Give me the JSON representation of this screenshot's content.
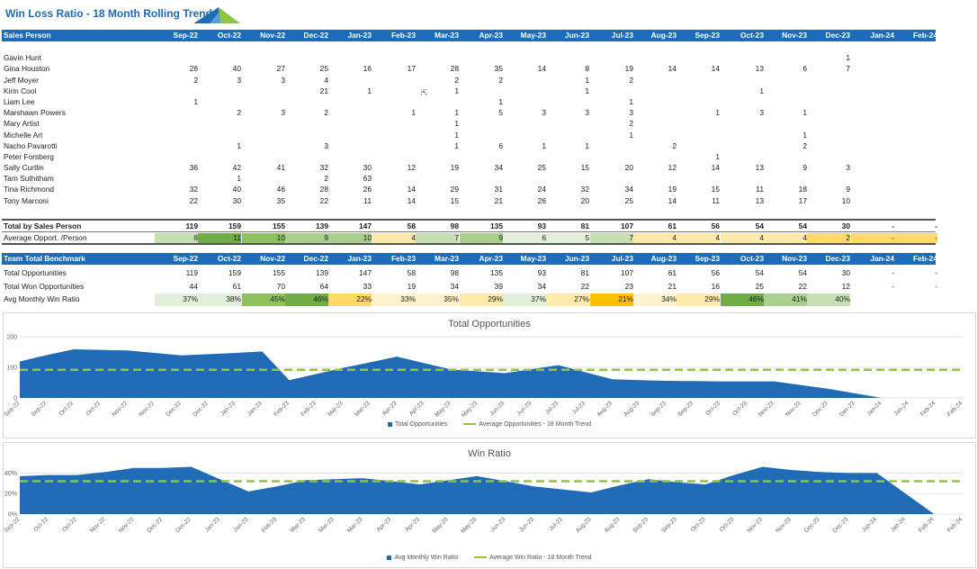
{
  "title": "Win Loss Ratio - 18 Month Rolling Trend",
  "colors": {
    "header": "#1f6bb5",
    "area": "#1f6bb5",
    "trend": "#8dc63f",
    "good": "#70ad47",
    "warn": "#ffc000"
  },
  "months": [
    "Sep-22",
    "Oct-22",
    "Nov-22",
    "Dec-22",
    "Jan-23",
    "Feb-23",
    "Mar-23",
    "Apr-23",
    "May-23",
    "Jun-23",
    "Jul-23",
    "Aug-23",
    "Sep-23",
    "Oct-23",
    "Nov-23",
    "Dec-23",
    "Jan-24",
    "Feb-24"
  ],
  "sales_table": {
    "header_label": "Sales Person",
    "rows": [
      {
        "name": "",
        "values": [
          "",
          "",
          "",
          "",
          "",
          "",
          "",
          "",
          "",
          "",
          "",
          "",
          "",
          "",
          "",
          "",
          "",
          ""
        ]
      },
      {
        "name": "Gavin Hunt",
        "values": [
          "",
          "",
          "",
          "",
          "",
          "",
          "",
          "",
          "",
          "",
          "",
          "",
          "",
          "",
          "",
          "1",
          "",
          ""
        ]
      },
      {
        "name": "Gina Houston",
        "values": [
          "26",
          "40",
          "27",
          "25",
          "16",
          "17",
          "28",
          "35",
          "14",
          "8",
          "19",
          "14",
          "14",
          "13",
          "6",
          "7",
          "",
          ""
        ]
      },
      {
        "name": "Jeff Moyer",
        "values": [
          "2",
          "3",
          "3",
          "4",
          "",
          "",
          "2",
          "2",
          "",
          "1",
          "2",
          "",
          "",
          "",
          "",
          "",
          "",
          ""
        ]
      },
      {
        "name": "Kirin Cool",
        "values": [
          "",
          "",
          "",
          "21",
          "1",
          "",
          "1",
          "",
          "",
          "1",
          "",
          "",
          "",
          "1",
          "",
          "",
          "",
          ""
        ]
      },
      {
        "name": "Liam Lee",
        "values": [
          "1",
          "",
          "",
          "",
          "",
          "",
          "",
          "1",
          "",
          "",
          "1",
          "",
          "",
          "",
          "",
          "",
          "",
          ""
        ]
      },
      {
        "name": "Marshawn Powers",
        "values": [
          "",
          "2",
          "3",
          "2",
          "",
          "1",
          "1",
          "5",
          "3",
          "3",
          "3",
          "",
          "1",
          "3",
          "1",
          "",
          "",
          ""
        ]
      },
      {
        "name": "Mary Artist",
        "values": [
          "",
          "",
          "",
          "",
          "",
          "",
          "1",
          "",
          "",
          "",
          "2",
          "",
          "",
          "",
          "",
          "",
          "",
          ""
        ]
      },
      {
        "name": "Michelle Art",
        "values": [
          "",
          "",
          "",
          "",
          "",
          "",
          "1",
          "",
          "",
          "",
          "1",
          "",
          "",
          "",
          "1",
          "",
          "",
          ""
        ]
      },
      {
        "name": "Nacho Pavarotti",
        "values": [
          "",
          "1",
          "",
          "3",
          "",
          "",
          "1",
          "6",
          "1",
          "1",
          "",
          "2",
          "",
          "",
          "2",
          "",
          "",
          ""
        ]
      },
      {
        "name": "Peter Forsberg",
        "values": [
          "",
          "",
          "",
          "",
          "",
          "",
          "",
          "",
          "",
          "",
          "",
          "",
          "1",
          "",
          "",
          "",
          "",
          ""
        ]
      },
      {
        "name": "Sally Curtlin",
        "values": [
          "36",
          "42",
          "41",
          "32",
          "30",
          "12",
          "19",
          "34",
          "25",
          "15",
          "20",
          "12",
          "14",
          "13",
          "9",
          "3",
          "",
          ""
        ]
      },
      {
        "name": "Tam Suthitham",
        "values": [
          "",
          "1",
          "",
          "2",
          "63",
          "",
          "",
          "",
          "",
          "",
          "",
          "",
          "",
          "",
          "",
          "",
          "",
          ""
        ]
      },
      {
        "name": "Tina Richmond",
        "values": [
          "32",
          "40",
          "46",
          "28",
          "26",
          "14",
          "29",
          "31",
          "24",
          "32",
          "34",
          "19",
          "15",
          "11",
          "18",
          "9",
          "",
          ""
        ]
      },
      {
        "name": "Tony Marconi",
        "values": [
          "22",
          "30",
          "35",
          "22",
          "11",
          "14",
          "15",
          "21",
          "26",
          "20",
          "25",
          "14",
          "11",
          "13",
          "17",
          "10",
          "",
          ""
        ]
      },
      {
        "name": "",
        "values": [
          "",
          "",
          "",
          "",
          "",
          "",
          "",
          "",
          "",
          "",
          "",
          "",
          "",
          "",
          "",
          "",
          "",
          ""
        ]
      }
    ],
    "total": {
      "name": "Total by Sales Person",
      "values": [
        "119",
        "159",
        "155",
        "139",
        "147",
        "58",
        "98",
        "135",
        "93",
        "81",
        "107",
        "61",
        "56",
        "54",
        "54",
        "30",
        "-",
        "-"
      ]
    },
    "average": {
      "name": "Average Opport. /Person",
      "values": [
        "8",
        "11",
        "10",
        "9",
        "10",
        "4",
        "7",
        "9",
        "6",
        "5",
        "7",
        "4",
        "4",
        "4",
        "4",
        "2",
        "-",
        "-"
      ],
      "bg": [
        "#c6e0b4",
        "#70ad47",
        "#8fc25f",
        "#a9d08e",
        "#a9d08e",
        "#fde9a9",
        "#c6e0b4",
        "#a9d08e",
        "#e2efda",
        "#e2efda",
        "#c6e0b4",
        "#fde9a9",
        "#fde9a9",
        "#fde9a9",
        "#fde9a9",
        "#ffd966",
        "#ffd966",
        "#ffd966"
      ]
    }
  },
  "benchmark_table": {
    "header_label": "Team Total Benchmark",
    "rows": [
      {
        "name": "Total Opportunities",
        "values": [
          "119",
          "159",
          "155",
          "139",
          "147",
          "58",
          "98",
          "135",
          "93",
          "81",
          "107",
          "61",
          "56",
          "54",
          "54",
          "30",
          "-",
          "-"
        ]
      },
      {
        "name": "Total Won Opportunities",
        "values": [
          "44",
          "61",
          "70",
          "64",
          "33",
          "19",
          "34",
          "39",
          "34",
          "22",
          "23",
          "21",
          "16",
          "25",
          "22",
          "12",
          "-",
          "-"
        ]
      }
    ],
    "win_ratio": {
      "name": "Avg Monthly Win Ratio",
      "values": [
        "37%",
        "38%",
        "45%",
        "46%",
        "22%",
        "33%",
        "35%",
        "29%",
        "37%",
        "27%",
        "21%",
        "34%",
        "29%",
        "46%",
        "41%",
        "40%",
        "",
        ""
      ],
      "bg": [
        "#e2efda",
        "#e2efda",
        "#8fc25f",
        "#70ad47",
        "#ffd966",
        "#fff2cc",
        "#fff2cc",
        "#fde9a9",
        "#e2efda",
        "#fde9a9",
        "#ffc000",
        "#fff2cc",
        "#fde9a9",
        "#70ad47",
        "#a9d08e",
        "#c6e0b4",
        "",
        ""
      ]
    }
  },
  "charts": {
    "opportunities": {
      "title": "Total Opportunities",
      "legend_area": "Total Opportunities",
      "legend_trend": "Average Opportunities - 18 Month Trend",
      "y_ticks": [
        "200",
        "100",
        "0"
      ]
    },
    "win": {
      "title": "Win Ratio",
      "legend_area": "Avg Monthly Win Ratio",
      "legend_trend": "Average Win Ratio - 18 Month Trend",
      "y_ticks": [
        "40%",
        "20%",
        "0%"
      ]
    }
  },
  "chart_data": [
    {
      "type": "area",
      "title": "Total Opportunities",
      "x": [
        "Sep-22",
        "Sep-22",
        "Oct-22",
        "Oct-22",
        "Nov-22",
        "Nov-22",
        "Dec-22",
        "Dec-22",
        "Jan-23",
        "Jan-23",
        "Feb-23",
        "Feb-23",
        "Mar-23",
        "Mar-23",
        "Apr-23",
        "Apr-23",
        "May-23",
        "May-23",
        "Jun-23",
        "Jun-23",
        "Jul-23",
        "Jul-23",
        "Aug-23",
        "Aug-23",
        "Sep-23",
        "Sep-23",
        "Oct-23",
        "Oct-23",
        "Nov-23",
        "Nov-23",
        "Dec-23",
        "Dec-23",
        "Jan-24",
        "Jan-24",
        "Feb-24",
        "Feb-24"
      ],
      "series": [
        {
          "name": "Total Opportunities",
          "values": [
            119,
            140,
            159,
            157,
            155,
            147,
            139,
            143,
            147,
            152,
            58,
            78,
            98,
            116,
            135,
            114,
            93,
            87,
            81,
            94,
            107,
            84,
            61,
            58,
            56,
            55,
            54,
            54,
            54,
            42,
            30,
            15,
            0,
            0,
            0,
            0
          ]
        },
        {
          "name": "Average Opportunities - 18 Month Trend",
          "values": [
            92,
            92,
            92,
            92,
            92,
            92,
            92,
            92,
            92,
            92,
            92,
            92,
            92,
            92,
            92,
            92,
            92,
            92,
            92,
            92,
            92,
            92,
            92,
            92,
            92,
            92,
            92,
            92,
            92,
            92,
            92,
            92,
            92,
            92,
            92,
            92
          ]
        }
      ],
      "ylim": [
        0,
        200
      ]
    },
    {
      "type": "area",
      "title": "Win Ratio",
      "x": [
        "Sep-22",
        "Oct-22",
        "Oct-22",
        "Nov-22",
        "Nov-22",
        "Dec-22",
        "Dec-22",
        "Jan-23",
        "Jan-23",
        "Feb-23",
        "Mar-23",
        "Mar-23",
        "Mar-23",
        "Apr-23",
        "Apr-23",
        "May-23",
        "May-23",
        "Jun-23",
        "Jun-23",
        "Jul-23",
        "Aug-23",
        "Aug-23",
        "Sep-23",
        "Sep-23",
        "Oct-23",
        "Oct-23",
        "Nov-23",
        "Nov-23",
        "Dec-23",
        "Dec-23",
        "Jan-24",
        "Jan-24",
        "Feb-24",
        "Feb-24"
      ],
      "series": [
        {
          "name": "Avg Monthly Win Ratio",
          "values": [
            37,
            38,
            38,
            41,
            45,
            45,
            46,
            34,
            22,
            27,
            33,
            34,
            35,
            32,
            29,
            33,
            37,
            32,
            27,
            24,
            21,
            28,
            34,
            31,
            29,
            38,
            46,
            43,
            41,
            40,
            40,
            20,
            0,
            0
          ]
        },
        {
          "name": "Average Win Ratio - 18 Month Trend",
          "values": [
            32,
            32,
            32,
            32,
            32,
            32,
            32,
            32,
            32,
            32,
            32,
            32,
            32,
            32,
            32,
            32,
            32,
            32,
            32,
            32,
            32,
            32,
            32,
            32,
            32,
            32,
            32,
            32,
            32,
            32,
            32,
            32,
            32,
            32
          ]
        }
      ],
      "ylim": [
        0,
        50
      ]
    }
  ]
}
